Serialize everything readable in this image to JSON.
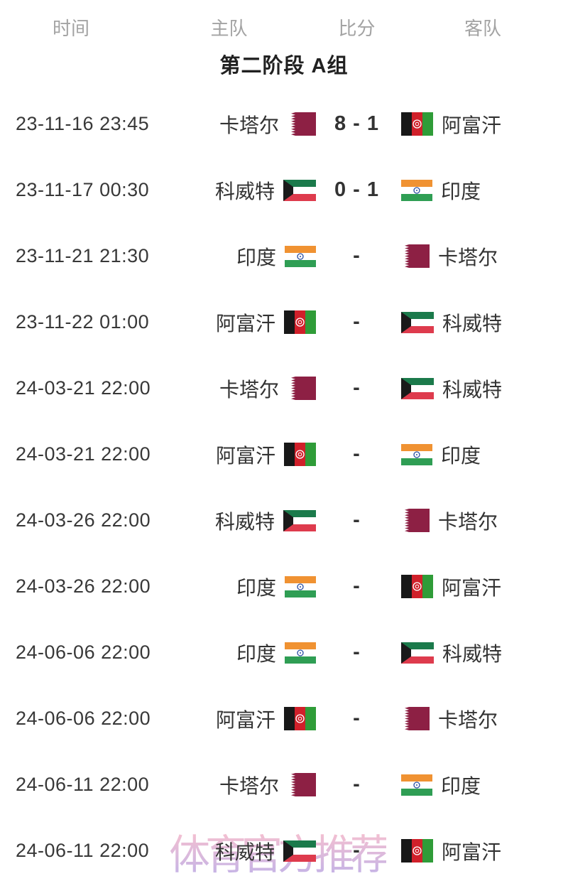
{
  "header": {
    "columns": [
      "时间",
      "主队",
      "比分",
      "客队"
    ]
  },
  "group_title": "第二阶段 A组",
  "watermark": "体育官方推荐",
  "matches": [
    {
      "time": "23-11-16 23:45",
      "home": "卡塔尔",
      "home_flag": "qatar",
      "score": "8 - 1",
      "away": "阿富汗",
      "away_flag": "afghanistan"
    },
    {
      "time": "23-11-17 00:30",
      "home": "科威特",
      "home_flag": "kuwait",
      "score": "0 - 1",
      "away": "印度",
      "away_flag": "india"
    },
    {
      "time": "23-11-21 21:30",
      "home": "印度",
      "home_flag": "india",
      "score": "-",
      "away": "卡塔尔",
      "away_flag": "qatar"
    },
    {
      "time": "23-11-22 01:00",
      "home": "阿富汗",
      "home_flag": "afghanistan",
      "score": "-",
      "away": "科威特",
      "away_flag": "kuwait"
    },
    {
      "time": "24-03-21 22:00",
      "home": "卡塔尔",
      "home_flag": "qatar",
      "score": "-",
      "away": "科威特",
      "away_flag": "kuwait"
    },
    {
      "time": "24-03-21 22:00",
      "home": "阿富汗",
      "home_flag": "afghanistan",
      "score": "-",
      "away": "印度",
      "away_flag": "india"
    },
    {
      "time": "24-03-26 22:00",
      "home": "科威特",
      "home_flag": "kuwait",
      "score": "-",
      "away": "卡塔尔",
      "away_flag": "qatar"
    },
    {
      "time": "24-03-26 22:00",
      "home": "印度",
      "home_flag": "india",
      "score": "-",
      "away": "阿富汗",
      "away_flag": "afghanistan"
    },
    {
      "time": "24-06-06 22:00",
      "home": "印度",
      "home_flag": "india",
      "score": "-",
      "away": "科威特",
      "away_flag": "kuwait"
    },
    {
      "time": "24-06-06 22:00",
      "home": "阿富汗",
      "home_flag": "afghanistan",
      "score": "-",
      "away": "卡塔尔",
      "away_flag": "qatar"
    },
    {
      "time": "24-06-11 22:00",
      "home": "卡塔尔",
      "home_flag": "qatar",
      "score": "-",
      "away": "印度",
      "away_flag": "india"
    },
    {
      "time": "24-06-11 22:00",
      "home": "科威特",
      "home_flag": "kuwait",
      "score": "-",
      "away": "阿富汗",
      "away_flag": "afghanistan"
    }
  ],
  "colors": {
    "page_bg": "#ffffff",
    "header_text": "#a3a3a3",
    "title_text": "#212121",
    "time_text": "#383838",
    "team_text": "#333333",
    "score_text": "#333333",
    "watermark_pink": "#f6b6c8",
    "watermark_lavender": "#b7a6e4"
  },
  "flag_colors": {
    "qatar": {
      "maroon": "#8d2044",
      "white": "#ffffff"
    },
    "kuwait": {
      "green": "#1b7a4b",
      "white": "#ffffff",
      "red": "#de3b4d",
      "black": "#1a1a1a"
    },
    "india": {
      "saffron": "#f09232",
      "white": "#ffffff",
      "green": "#2f9e54",
      "navy": "#2b4fa2"
    },
    "afghanistan": {
      "black": "#181818",
      "red": "#d0202a",
      "green": "#2f9c38",
      "white": "#ffffff"
    }
  }
}
